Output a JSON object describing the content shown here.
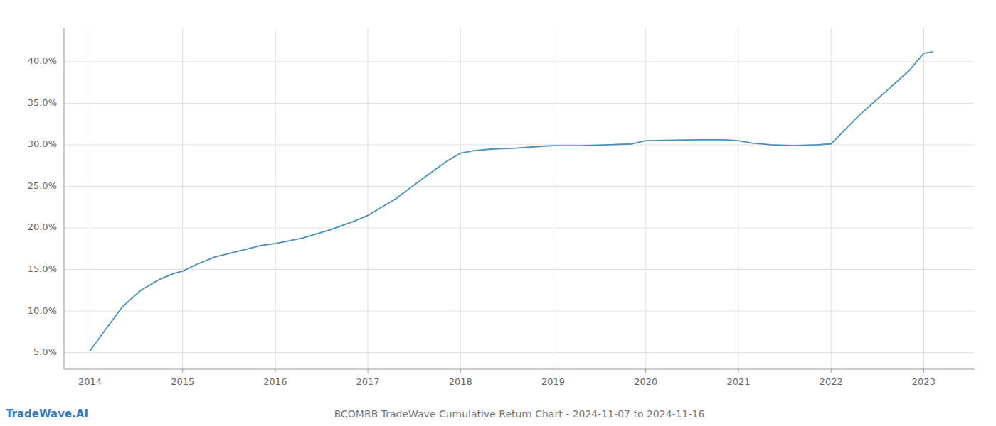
{
  "chart_data": {
    "type": "line",
    "title": "BCOMRB TradeWave Cumulative Return Chart - 2024-11-07 to 2024-11-16",
    "annotations": [
      "TradeWave.AI"
    ],
    "color": "#4a90b8",
    "grid": true,
    "x": [
      2014.0,
      2014.15,
      2014.35,
      2014.55,
      2014.75,
      2014.9,
      2015.0,
      2015.15,
      2015.35,
      2015.6,
      2015.85,
      2016.0,
      2016.3,
      2016.6,
      2016.85,
      2017.0,
      2017.3,
      2017.6,
      2017.85,
      2018.0,
      2018.15,
      2018.35,
      2018.6,
      2018.85,
      2019.0,
      2019.3,
      2019.6,
      2019.85,
      2020.0,
      2020.3,
      2020.6,
      2020.85,
      2021.0,
      2021.15,
      2021.35,
      2021.6,
      2021.85,
      2022.0,
      2022.3,
      2022.6,
      2022.85,
      2023.0,
      2023.1
    ],
    "values": [
      5.2,
      7.5,
      10.5,
      12.5,
      13.8,
      14.5,
      14.8,
      15.6,
      16.5,
      17.2,
      17.9,
      18.1,
      18.8,
      19.8,
      20.8,
      21.5,
      23.5,
      26.0,
      28.0,
      29.0,
      29.3,
      29.5,
      29.6,
      29.8,
      29.9,
      29.9,
      30.0,
      30.1,
      30.5,
      30.55,
      30.6,
      30.6,
      30.5,
      30.2,
      30.0,
      29.9,
      30.0,
      30.1,
      33.5,
      36.5,
      39.0,
      41.0,
      41.2
    ],
    "xlim": [
      2013.72,
      2023.55
    ],
    "xticks": [
      2014,
      2015,
      2016,
      2017,
      2018,
      2019,
      2020,
      2021,
      2022,
      2023
    ],
    "ylim": [
      3.0,
      44.0
    ],
    "yticks": [
      {
        "value": 5.0,
        "label": "5.0%"
      },
      {
        "value": 10.0,
        "label": "10.0%"
      },
      {
        "value": 15.0,
        "label": "15.0%"
      },
      {
        "value": 20.0,
        "label": "20.0%"
      },
      {
        "value": 25.0,
        "label": "25.0%"
      },
      {
        "value": 30.0,
        "label": "30.0%"
      },
      {
        "value": 35.0,
        "label": "35.0%"
      },
      {
        "value": 40.0,
        "label": "40.0%"
      }
    ]
  }
}
